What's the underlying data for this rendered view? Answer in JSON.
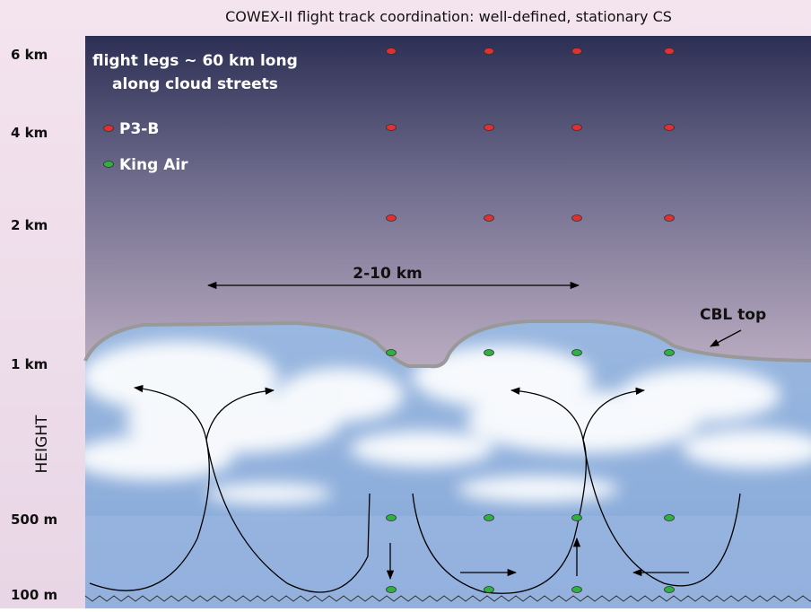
{
  "title": "COWEX-II flight track coordination: well-defined, stationary CS",
  "height_axis": {
    "label": "HEIGHT",
    "ticks": [
      "6 km",
      "4 km",
      "2 km",
      "1 km",
      "500 m",
      "100 m"
    ]
  },
  "annotations": {
    "flight_legs": [
      "flight legs ~ 60 km long",
      "along cloud streets"
    ],
    "spacing": "2-10 km",
    "cbl_top": "CBL top"
  },
  "legend": [
    {
      "label": "P3-B"
    },
    {
      "label": "King Air"
    }
  ]
}
